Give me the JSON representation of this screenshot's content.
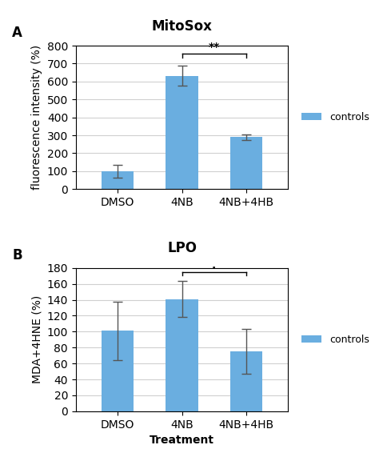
{
  "chart_data": [
    {
      "type": "bar",
      "title": "MitoSox",
      "panel_label": "A",
      "categories": [
        "DMSO",
        "4NB",
        "4NB+4HB"
      ],
      "series": [
        {
          "name": "controls",
          "color": "#6aaee0",
          "values": [
            100,
            632,
            290
          ]
        }
      ],
      "errors": [
        35,
        55,
        15
      ],
      "y_label": "fluorescence intensity (%)",
      "ylim": [
        0,
        800
      ],
      "yticks": [
        0,
        100,
        200,
        300,
        400,
        500,
        600,
        700,
        800
      ],
      "grid": true,
      "legend": "center left",
      "annotations": [
        {
          "text": "**",
          "bracket": [
            "4NB",
            "4NB+4HB"
          ],
          "y": 755,
          "text_y": 762
        }
      ]
    },
    {
      "type": "bar",
      "title": "LPO",
      "panel_label": "B",
      "categories": [
        "DMSO",
        "4NB",
        "4NB+4HB"
      ],
      "series": [
        {
          "name": "controls",
          "color": "#6aaee0",
          "values": [
            101,
            141,
            75
          ]
        }
      ],
      "errors": [
        37,
        23,
        28
      ],
      "y_label": "MDA+4HNE (%)",
      "x_label": "Treatment",
      "ylim": [
        0,
        180
      ],
      "yticks": [
        0,
        20,
        40,
        60,
        80,
        100,
        120,
        140,
        160,
        180
      ],
      "grid": true,
      "legend": "center left",
      "annotations": [
        {
          "text": ".",
          "bracket": [
            "4NB",
            "4NB+4HB"
          ],
          "y": 175,
          "text_y": 176
        }
      ]
    }
  ]
}
